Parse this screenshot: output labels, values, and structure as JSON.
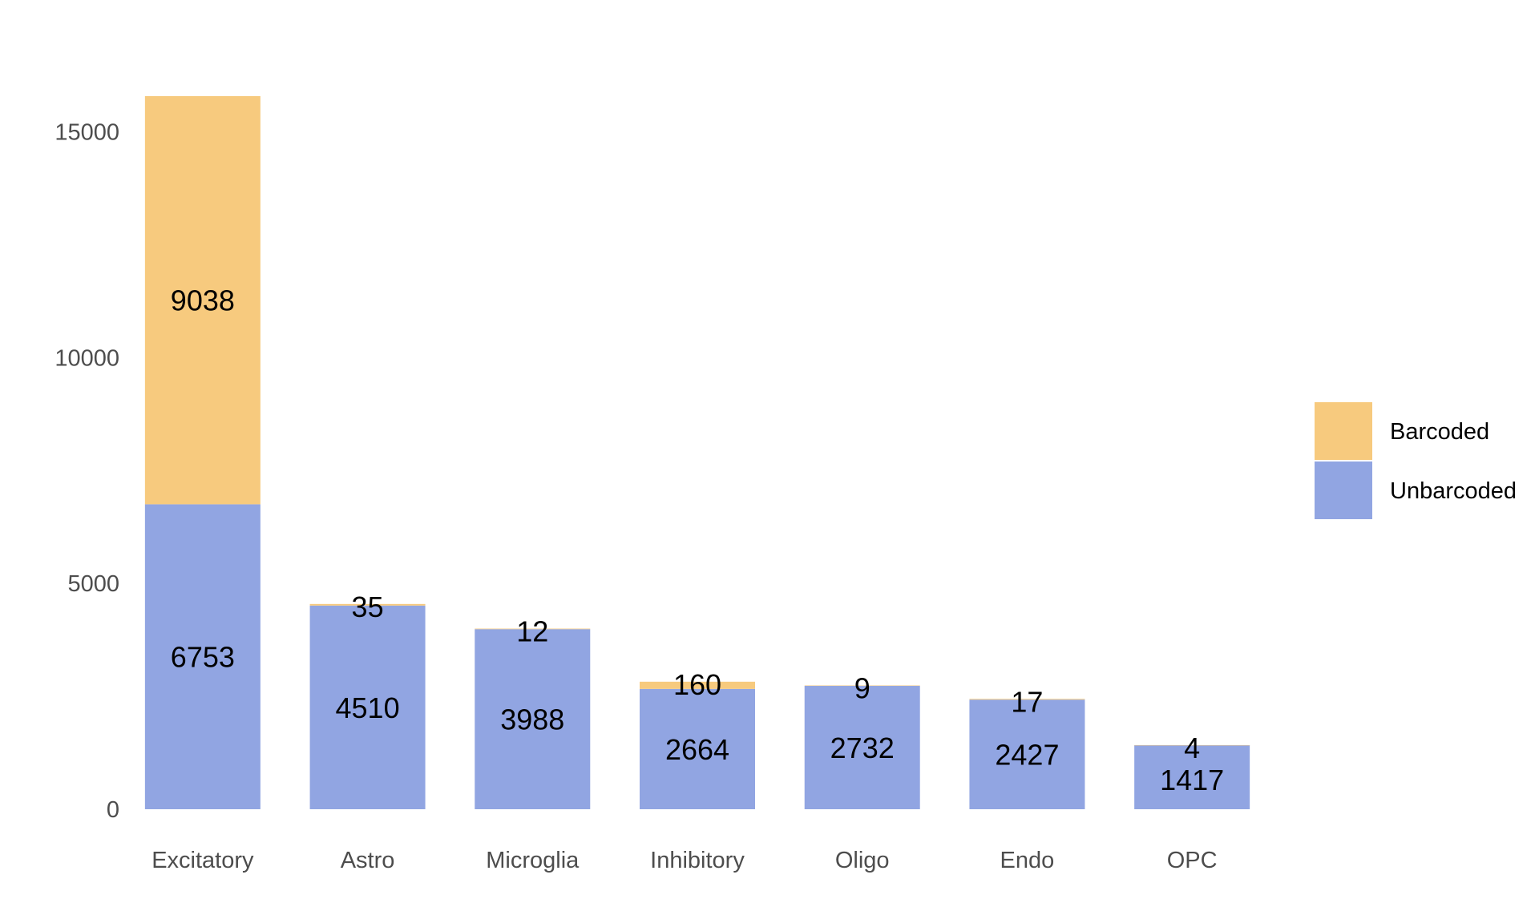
{
  "chart_data": {
    "type": "bar",
    "stacked": true,
    "categories": [
      "Excitatory",
      "Astro",
      "Microglia",
      "Inhibitory",
      "Oligo",
      "Endo",
      "OPC"
    ],
    "series": [
      {
        "name": "Unbarcoded",
        "color": "#91a5e2",
        "values": [
          6753,
          4510,
          3988,
          2664,
          2732,
          2427,
          1417
        ]
      },
      {
        "name": "Barcoded",
        "color": "#f7ca7e",
        "values": [
          9038,
          35,
          12,
          160,
          9,
          17,
          4
        ]
      }
    ],
    "yticks": [
      "0",
      "5000",
      "10000",
      "15000"
    ],
    "ylim": [
      0,
      15791
    ],
    "legend": {
      "position": "right",
      "entries": [
        "Barcoded",
        "Unbarcoded"
      ]
    },
    "grid": false
  }
}
